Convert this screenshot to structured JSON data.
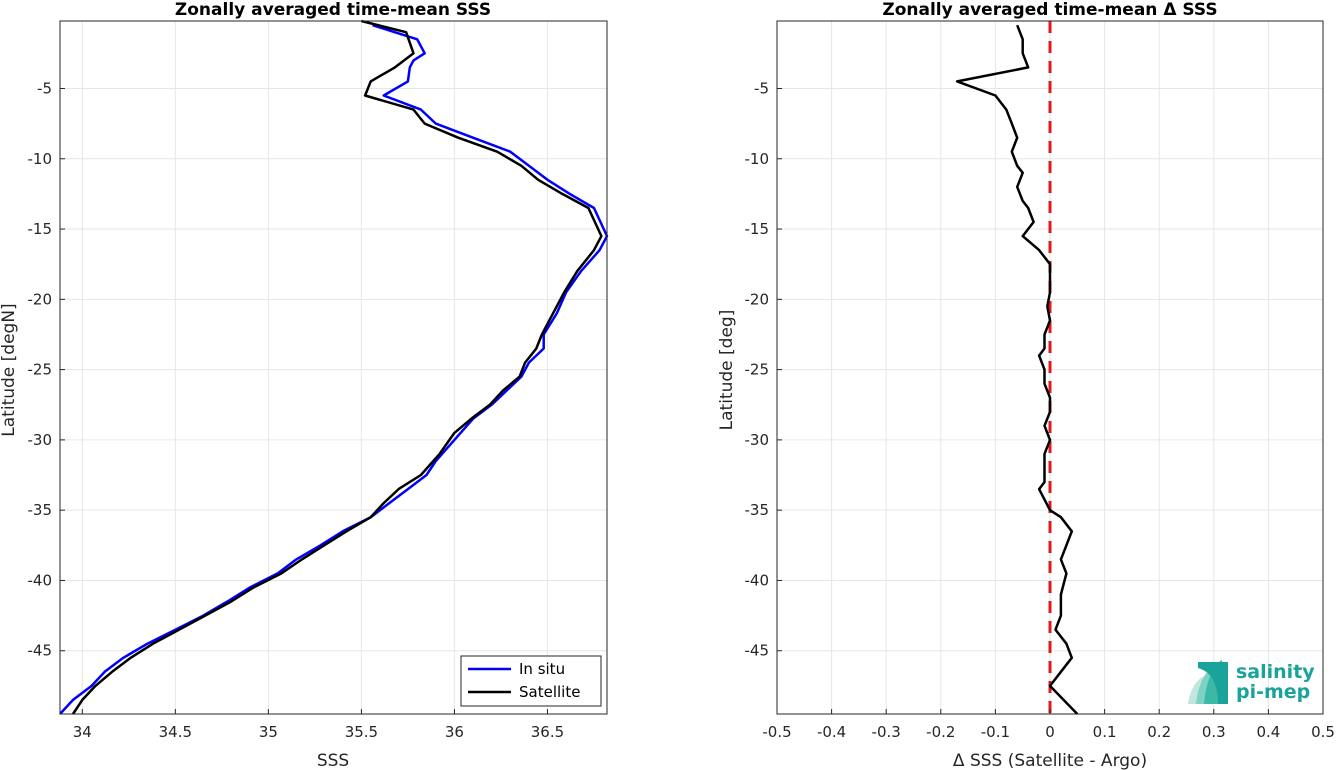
{
  "chart_data": [
    {
      "type": "line",
      "title": "Zonally averaged time-mean SSS",
      "xlabel": "SSS",
      "ylabel": "Latitude [degN]",
      "xlim": [
        33.88,
        36.82
      ],
      "ylim": [
        -49.5,
        -0.2
      ],
      "xticks": [
        34,
        34.5,
        35,
        35.5,
        36,
        36.5
      ],
      "yticks": [
        -5,
        -10,
        -15,
        -20,
        -25,
        -30,
        -35,
        -40,
        -45
      ],
      "grid": true,
      "legend": {
        "placement": "bottom-right"
      },
      "series": [
        {
          "name": "In situ",
          "color": "#0000ff",
          "points": [
            [
              35.56,
              -0.5
            ],
            [
              35.8,
              -1.5
            ],
            [
              35.84,
              -2.5
            ],
            [
              35.78,
              -3
            ],
            [
              35.76,
              -3.5
            ],
            [
              35.75,
              -4.5
            ],
            [
              35.62,
              -5.5
            ],
            [
              35.82,
              -6.5
            ],
            [
              35.9,
              -7.5
            ],
            [
              36.1,
              -8.5
            ],
            [
              36.3,
              -9.5
            ],
            [
              36.4,
              -10.5
            ],
            [
              36.5,
              -11.5
            ],
            [
              36.62,
              -12.5
            ],
            [
              36.75,
              -13.5
            ],
            [
              36.82,
              -15.5
            ],
            [
              36.78,
              -16.5
            ],
            [
              36.68,
              -18
            ],
            [
              36.6,
              -19.5
            ],
            [
              36.55,
              -21
            ],
            [
              36.48,
              -22.5
            ],
            [
              36.48,
              -23.5
            ],
            [
              36.4,
              -24.5
            ],
            [
              36.36,
              -25.5
            ],
            [
              36.28,
              -26.5
            ],
            [
              36.2,
              -27.5
            ],
            [
              36.1,
              -28.5
            ],
            [
              36.0,
              -30
            ],
            [
              35.9,
              -31.5
            ],
            [
              35.85,
              -32.5
            ],
            [
              35.75,
              -33.5
            ],
            [
              35.65,
              -34.5
            ],
            [
              35.55,
              -35.5
            ],
            [
              35.4,
              -36.5
            ],
            [
              35.28,
              -37.5
            ],
            [
              35.15,
              -38.5
            ],
            [
              35.05,
              -39.5
            ],
            [
              34.9,
              -40.5
            ],
            [
              34.78,
              -41.5
            ],
            [
              34.65,
              -42.5
            ],
            [
              34.5,
              -43.5
            ],
            [
              34.35,
              -44.5
            ],
            [
              34.22,
              -45.5
            ],
            [
              34.12,
              -46.5
            ],
            [
              34.05,
              -47.5
            ],
            [
              33.95,
              -48.5
            ],
            [
              33.88,
              -49.5
            ]
          ]
        },
        {
          "name": "Satellite",
          "color": "#000000",
          "points": [
            [
              35.5,
              -0.2
            ],
            [
              35.74,
              -1
            ],
            [
              35.78,
              -2.5
            ],
            [
              35.68,
              -3.5
            ],
            [
              35.55,
              -4.5
            ],
            [
              35.52,
              -5.5
            ],
            [
              35.78,
              -6.5
            ],
            [
              35.84,
              -7.5
            ],
            [
              36.02,
              -8.5
            ],
            [
              36.23,
              -9.5
            ],
            [
              36.36,
              -10.5
            ],
            [
              36.45,
              -11.5
            ],
            [
              36.58,
              -12.5
            ],
            [
              36.72,
              -13.5
            ],
            [
              36.79,
              -15.5
            ],
            [
              36.75,
              -16.5
            ],
            [
              36.66,
              -18
            ],
            [
              36.59,
              -19.5
            ],
            [
              36.53,
              -21
            ],
            [
              36.47,
              -22.5
            ],
            [
              36.44,
              -23.5
            ],
            [
              36.38,
              -24.5
            ],
            [
              36.35,
              -25.5
            ],
            [
              36.26,
              -26.5
            ],
            [
              36.19,
              -27.5
            ],
            [
              36.09,
              -28.5
            ],
            [
              36.0,
              -29.5
            ],
            [
              35.92,
              -31
            ],
            [
              35.82,
              -32.5
            ],
            [
              35.7,
              -33.5
            ],
            [
              35.62,
              -34.5
            ],
            [
              35.55,
              -35.5
            ],
            [
              35.42,
              -36.5
            ],
            [
              35.3,
              -37.5
            ],
            [
              35.18,
              -38.5
            ],
            [
              35.07,
              -39.5
            ],
            [
              34.92,
              -40.5
            ],
            [
              34.8,
              -41.5
            ],
            [
              34.66,
              -42.5
            ],
            [
              34.52,
              -43.5
            ],
            [
              34.38,
              -44.5
            ],
            [
              34.26,
              -45.5
            ],
            [
              34.16,
              -46.5
            ],
            [
              34.07,
              -47.5
            ],
            [
              34.0,
              -48.5
            ],
            [
              33.95,
              -49.5
            ]
          ]
        }
      ]
    },
    {
      "type": "line",
      "title": "Zonally averaged time-mean Δ SSS",
      "xlabel": "Δ SSS (Satellite - Argo)",
      "ylabel": "Latitude [deg]",
      "xlim": [
        -0.5,
        0.5
      ],
      "ylim": [
        -49.5,
        -0.2
      ],
      "xticks": [
        -0.5,
        -0.4,
        -0.3,
        -0.2,
        -0.1,
        0,
        0.1,
        0.2,
        0.3,
        0.4,
        0.5
      ],
      "yticks": [
        -5,
        -10,
        -15,
        -20,
        -25,
        -30,
        -35,
        -40,
        -45
      ],
      "grid": true,
      "reference_line": {
        "x": 0,
        "color": "#e31a1c",
        "style": "dashed"
      },
      "series": [
        {
          "color": "#000000",
          "points": [
            [
              -0.06,
              -0.5
            ],
            [
              -0.05,
              -1.5
            ],
            [
              -0.05,
              -2.5
            ],
            [
              -0.04,
              -3.5
            ],
            [
              -0.17,
              -4.5
            ],
            [
              -0.1,
              -5.5
            ],
            [
              -0.08,
              -6.5
            ],
            [
              -0.07,
              -7.5
            ],
            [
              -0.06,
              -8.5
            ],
            [
              -0.07,
              -9.5
            ],
            [
              -0.06,
              -10.5
            ],
            [
              -0.05,
              -11
            ],
            [
              -0.06,
              -12
            ],
            [
              -0.05,
              -13
            ],
            [
              -0.04,
              -13.5
            ],
            [
              -0.03,
              -14.5
            ],
            [
              -0.05,
              -15.5
            ],
            [
              -0.02,
              -16.5
            ],
            [
              0.0,
              -17.5
            ],
            [
              0.0,
              -19.5
            ],
            [
              -0.005,
              -20.5
            ],
            [
              0.0,
              -21.5
            ],
            [
              -0.01,
              -22.5
            ],
            [
              -0.01,
              -23.5
            ],
            [
              -0.02,
              -24
            ],
            [
              -0.01,
              -25
            ],
            [
              -0.01,
              -26
            ],
            [
              0.0,
              -27
            ],
            [
              0.0,
              -28
            ],
            [
              -0.01,
              -29
            ],
            [
              0.0,
              -30
            ],
            [
              -0.01,
              -31
            ],
            [
              -0.01,
              -32
            ],
            [
              -0.01,
              -33
            ],
            [
              -0.02,
              -33.5
            ],
            [
              0.0,
              -35
            ],
            [
              0.02,
              -35.5
            ],
            [
              0.04,
              -36.5
            ],
            [
              0.03,
              -37.5
            ],
            [
              0.02,
              -38.5
            ],
            [
              0.03,
              -39.5
            ],
            [
              0.02,
              -41
            ],
            [
              0.02,
              -42.5
            ],
            [
              0.01,
              -43.5
            ],
            [
              0.03,
              -44.5
            ],
            [
              0.04,
              -45.5
            ],
            [
              0.02,
              -46.5
            ],
            [
              0.0,
              -47.5
            ],
            [
              0.05,
              -49.5
            ]
          ]
        }
      ]
    }
  ],
  "legend": {
    "in_situ": "In situ",
    "satellite": "Satellite"
  },
  "logo": {
    "line1": "salinity",
    "line2": "pi-mep",
    "color": "#1aa39a"
  }
}
